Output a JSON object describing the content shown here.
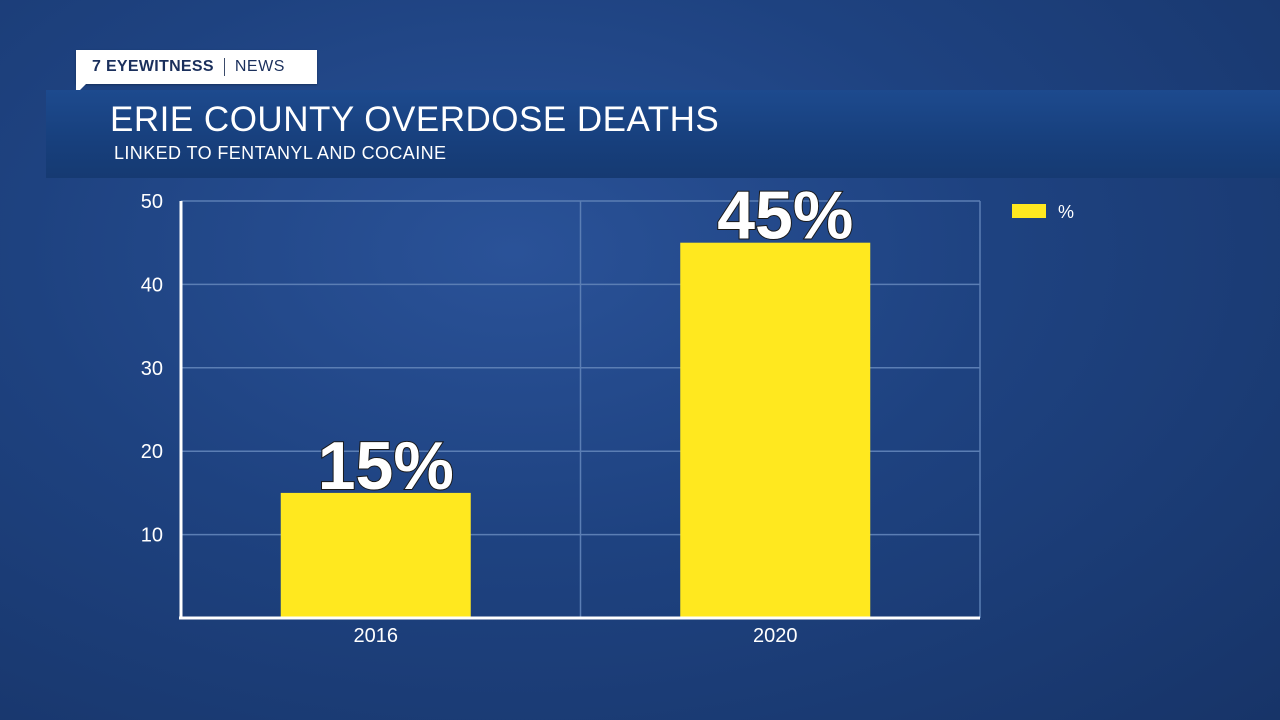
{
  "branding": {
    "station": "7 EYEWITNESS",
    "section": "NEWS"
  },
  "colors": {
    "bar": "#ffe81f",
    "grid": "#5b7eb4",
    "axis": "#ffffff",
    "background": "#1e4280"
  },
  "chart_data": {
    "type": "bar",
    "title": "ERIE COUNTY OVERDOSE DEATHS",
    "subtitle": "LINKED TO FENTANYL AND COCAINE",
    "categories": [
      "2016",
      "2020"
    ],
    "series": [
      {
        "name": "%",
        "values": [
          15,
          45
        ]
      }
    ],
    "data_labels": [
      "15%",
      "45%"
    ],
    "ylim": [
      0,
      50
    ],
    "yticks": [
      10,
      20,
      30,
      40,
      50
    ],
    "grid": true,
    "legend_position": "top-right"
  }
}
